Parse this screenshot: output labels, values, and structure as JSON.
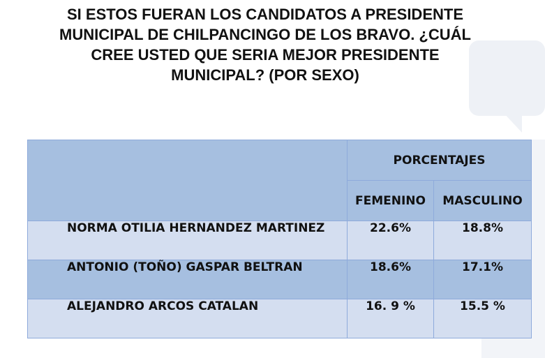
{
  "title_lines": [
    "SI ESTOS FUERAN LOS CANDIDATOS A PRESIDENTE",
    "MUNICIPAL DE CHILPANCINGO DE LOS BRAVO. ¿CUÁL",
    "CREE USTED QUE SERIA MEJOR PRESIDENTE",
    "MUNICIPAL? (POR SEXO)"
  ],
  "header": {
    "group": "PORCENTAJES",
    "col1": "FEMENINO",
    "col2": "MASCULINO"
  },
  "rows": [
    {
      "name": "NORMA OTILIA HERNANDEZ MARTINEZ",
      "femenino": "22.6%",
      "masculino": "18.8%"
    },
    {
      "name": "ANTONIO (TOÑO) GASPAR BELTRAN",
      "femenino": "18.6%",
      "masculino": "17.1%"
    },
    {
      "name": "ALEJANDRO ARCOS CATALAN",
      "femenino": "16. 9 %",
      "masculino": "15.5 %"
    }
  ],
  "colors": {
    "header": "#a6bfe0",
    "row_light": "#d4def0",
    "row_dark": "#a6bfe0",
    "border": "#8eaadb"
  },
  "chart_data": {
    "type": "table",
    "title": "SI ESTOS FUERAN LOS CANDIDATOS A PRESIDENTE MUNICIPAL DE CHILPANCINGO DE LOS BRAVO. ¿CUÁL CREE USTED QUE SERIA MEJOR PRESIDENTE MUNICIPAL? (POR SEXO)",
    "columns": [
      "FEMENINO",
      "MASCULINO"
    ],
    "categories": [
      "NORMA OTILIA HERNANDEZ MARTINEZ",
      "ANTONIO (TOÑO) GASPAR BELTRAN",
      "ALEJANDRO ARCOS CATALAN"
    ],
    "series": [
      {
        "name": "FEMENINO",
        "values": [
          22.6,
          18.6,
          16.9
        ]
      },
      {
        "name": "MASCULINO",
        "values": [
          18.8,
          17.1,
          15.5
        ]
      }
    ]
  }
}
